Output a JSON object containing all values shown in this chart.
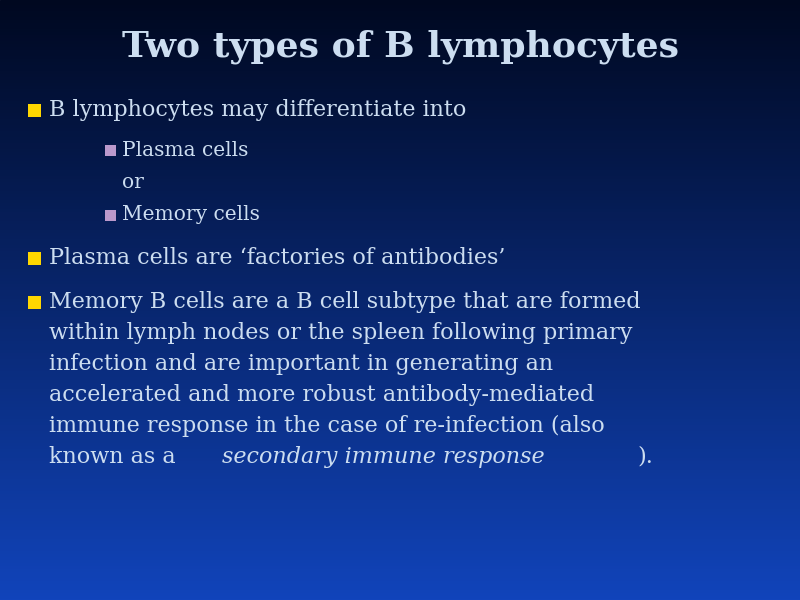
{
  "title_text": "Two types of B lymphocytes",
  "title_color": "#CCDDF0",
  "text_color": "#CCDDF0",
  "bullet1_color": "#FFD700",
  "bullet2_color": "#BB99CC",
  "title_fontsize": 26,
  "body_fontsize": 16,
  "sub_fontsize": 14.5,
  "bg_top": "#000820",
  "bg_bottom": "#1144BB",
  "bullet1_text": "B lymphocytes may differentiate into",
  "sub1_text": "Plasma cells",
  "or_text": "or",
  "sub2_text": "Memory cells",
  "bullet2_text": "Plasma cells are ‘factories of antibodies’",
  "bullet3_lines": [
    "Memory B cells are a B cell subtype that are formed",
    "within lymph nodes or the spleen following primary",
    "infection and are important in generating an",
    "accelerated and more robust antibody-mediated",
    "immune response in the case of re-infection (also",
    "known as a "
  ],
  "bullet3_italic": "secondary immune response",
  "bullet3_end": ")."
}
